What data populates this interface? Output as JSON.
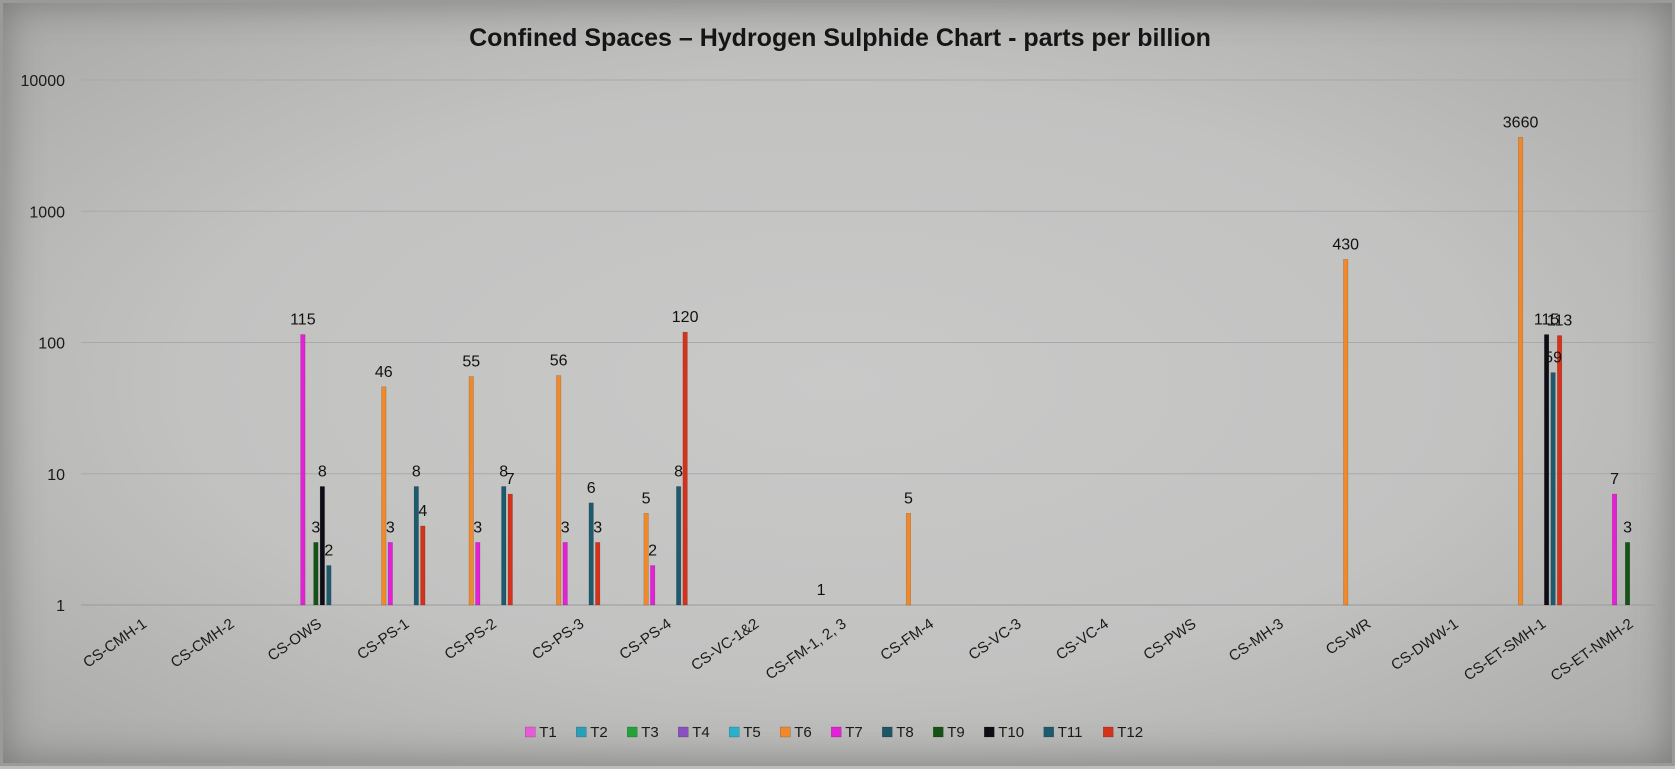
{
  "chart_data": {
    "type": "bar",
    "title": "Confined Spaces – Hydrogen Sulphide Chart - parts per billion",
    "xlabel": "",
    "ylabel": "",
    "yscale": "log",
    "ylim": [
      1,
      10000
    ],
    "yticks": [
      "10000",
      "1000",
      "100",
      "10",
      "1"
    ],
    "grid": true,
    "legend_position": "bottom",
    "categories": [
      "CS-CMH-1",
      "CS-CMH-2",
      "CS-OWS",
      "CS-PS-1",
      "CS-PS-2",
      "CS-PS-3",
      "CS-PS-4",
      "CS-VC-1&2",
      "CS-FM-1, 2, 3",
      "CS-FM-4",
      "CS-VC-3",
      "CS-VC-4",
      "CS-PWS",
      "CS-MH-3",
      "CS-WR",
      "CS-DWW-1",
      "CS-ET-SMH-1",
      "CS-ET-NMH-2"
    ],
    "series": [
      {
        "name": "T1",
        "color": "#e85ad8",
        "values": [
          null,
          null,
          null,
          null,
          null,
          null,
          null,
          null,
          null,
          null,
          null,
          null,
          null,
          null,
          null,
          null,
          null,
          null
        ]
      },
      {
        "name": "T2",
        "color": "#2a9fb8",
        "values": [
          null,
          null,
          null,
          null,
          null,
          null,
          null,
          null,
          null,
          null,
          null,
          null,
          null,
          null,
          null,
          null,
          null,
          null
        ]
      },
      {
        "name": "T3",
        "color": "#22a33a",
        "values": [
          null,
          null,
          null,
          null,
          null,
          null,
          null,
          null,
          null,
          null,
          null,
          null,
          null,
          null,
          null,
          null,
          null,
          null
        ]
      },
      {
        "name": "T4",
        "color": "#8a4fc0",
        "values": [
          null,
          null,
          null,
          null,
          null,
          null,
          null,
          null,
          null,
          null,
          null,
          null,
          null,
          null,
          null,
          null,
          null,
          null
        ]
      },
      {
        "name": "T5",
        "color": "#2ab0cc",
        "values": [
          null,
          null,
          null,
          null,
          null,
          null,
          null,
          null,
          null,
          null,
          null,
          null,
          null,
          null,
          null,
          null,
          null,
          null
        ]
      },
      {
        "name": "T6",
        "color": "#f0892b",
        "values": [
          null,
          null,
          null,
          46,
          55,
          56,
          5,
          null,
          1,
          5,
          null,
          null,
          null,
          null,
          430,
          null,
          3660,
          null
        ]
      },
      {
        "name": "T7",
        "color": "#e421d6",
        "values": [
          null,
          null,
          115,
          3,
          3,
          3,
          2,
          null,
          null,
          null,
          null,
          null,
          null,
          null,
          null,
          null,
          null,
          7
        ]
      },
      {
        "name": "T8",
        "color": "#1f5566",
        "values": [
          null,
          null,
          null,
          null,
          null,
          null,
          null,
          null,
          null,
          null,
          null,
          null,
          null,
          null,
          null,
          null,
          null,
          null
        ]
      },
      {
        "name": "T9",
        "color": "#165216",
        "values": [
          null,
          null,
          3,
          null,
          null,
          null,
          null,
          null,
          null,
          null,
          null,
          null,
          null,
          null,
          null,
          null,
          null,
          3
        ]
      },
      {
        "name": "T10",
        "color": "#0d0d16",
        "values": [
          null,
          null,
          8,
          null,
          null,
          null,
          null,
          null,
          null,
          null,
          null,
          null,
          null,
          null,
          null,
          null,
          115,
          null
        ]
      },
      {
        "name": "T11",
        "color": "#1e5a6e",
        "values": [
          null,
          null,
          2,
          8,
          8,
          6,
          8,
          null,
          null,
          null,
          null,
          null,
          null,
          null,
          null,
          null,
          59,
          null
        ]
      },
      {
        "name": "T12",
        "color": "#d4321a",
        "values": [
          null,
          null,
          null,
          4,
          7,
          3,
          120,
          null,
          null,
          null,
          null,
          null,
          null,
          null,
          null,
          null,
          113,
          null
        ]
      }
    ]
  }
}
